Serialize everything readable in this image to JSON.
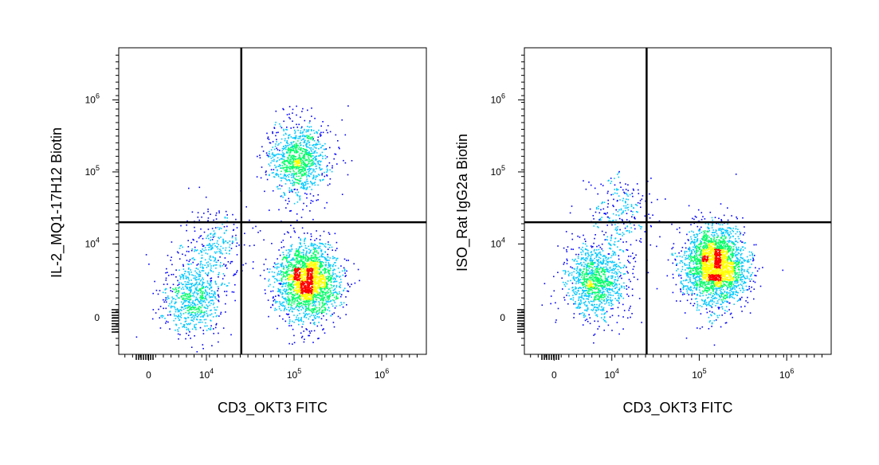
{
  "chart_data": [
    {
      "type": "scatter",
      "plot_style": "pseudocolor density dot plot",
      "colors": [
        "#0000ff",
        "#00c8ff",
        "#00ff66",
        "#ffff00",
        "#ff0000"
      ],
      "xlabel": "CD3_OKT3 FITC",
      "ylabel": "IL-2_MQ1-17H12 Biotin",
      "x_scale": "biexponential",
      "y_scale": "biexponential",
      "x_ticks": [
        {
          "base": "0",
          "exp": ""
        },
        {
          "base": "10",
          "exp": "4"
        },
        {
          "base": "10",
          "exp": "5"
        },
        {
          "base": "10",
          "exp": "6"
        }
      ],
      "y_ticks": [
        {
          "base": "0",
          "exp": ""
        },
        {
          "base": "10",
          "exp": "4"
        },
        {
          "base": "10",
          "exp": "5"
        },
        {
          "base": "10",
          "exp": "6"
        }
      ],
      "quadrant_gate": {
        "x": 25000,
        "y": 20000
      },
      "populations": [
        {
          "x_center": 6000,
          "y_center": 1500,
          "count": 700
        },
        {
          "x_center": 12000,
          "y_center": 9000,
          "count": 300
        },
        {
          "x_center": 140000,
          "y_center": 3000,
          "count": 2200
        },
        {
          "x_center": 110000,
          "y_center": 150000,
          "count": 1000
        }
      ]
    },
    {
      "type": "scatter",
      "plot_style": "pseudocolor density dot plot",
      "colors": [
        "#0000ff",
        "#00c8ff",
        "#00ff66",
        "#ffff00",
        "#ff0000"
      ],
      "xlabel": "CD3_OKT3 FITC",
      "ylabel": "ISO_Rat IgG2a Biotin",
      "x_scale": "biexponential",
      "y_scale": "biexponential",
      "x_ticks": [
        {
          "base": "0",
          "exp": ""
        },
        {
          "base": "10",
          "exp": "4"
        },
        {
          "base": "10",
          "exp": "5"
        },
        {
          "base": "10",
          "exp": "6"
        }
      ],
      "y_ticks": [
        {
          "base": "0",
          "exp": ""
        },
        {
          "base": "10",
          "exp": "4"
        },
        {
          "base": "10",
          "exp": "5"
        },
        {
          "base": "10",
          "exp": "6"
        }
      ],
      "quadrant_gate": {
        "x": 25000,
        "y": 20000
      },
      "populations": [
        {
          "x_center": 5500,
          "y_center": 3000,
          "count": 1100
        },
        {
          "x_center": 12000,
          "y_center": 25000,
          "count": 250
        },
        {
          "x_center": 150000,
          "y_center": 5000,
          "count": 2600
        }
      ]
    }
  ]
}
